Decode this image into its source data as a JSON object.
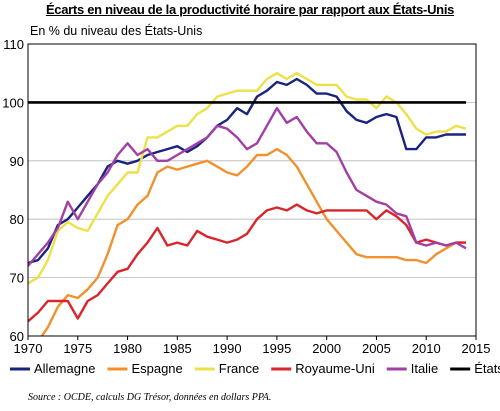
{
  "title": "Écarts en niveau de la productivité horaire par rapport aux États-Unis",
  "source": "Source : OCDE, calculs DG Trésor, données en dollars PPA.",
  "chart_data": {
    "type": "line",
    "ylabel": "En % du niveau des États-Unis",
    "xlabel": "",
    "xlim": [
      1970,
      2015
    ],
    "ylim": [
      60,
      110
    ],
    "xticks": [
      1970,
      1975,
      1980,
      1985,
      1990,
      1995,
      2000,
      2005,
      2010,
      2015
    ],
    "yticks": [
      60,
      70,
      80,
      90,
      100,
      110
    ],
    "x": [
      1970,
      1971,
      1972,
      1973,
      1974,
      1975,
      1976,
      1977,
      1978,
      1979,
      1980,
      1981,
      1982,
      1983,
      1984,
      1985,
      1986,
      1987,
      1988,
      1989,
      1990,
      1991,
      1992,
      1993,
      1994,
      1995,
      1996,
      1997,
      1998,
      1999,
      2000,
      2001,
      2002,
      2003,
      2004,
      2005,
      2006,
      2007,
      2008,
      2009,
      2010,
      2011,
      2012,
      2013,
      2014
    ],
    "legend_position": "bottom",
    "grid": "horizontal",
    "series": [
      {
        "name": "Allemagne",
        "color": "#1a237e",
        "values": [
          72.5,
          73,
          75,
          79,
          80,
          82,
          84,
          86,
          89,
          90,
          89.5,
          90,
          91,
          91.5,
          92,
          92.5,
          91.5,
          92.5,
          94,
          96,
          97,
          99,
          98,
          101,
          102,
          103.5,
          103,
          104,
          103,
          101.5,
          101.5,
          101,
          98.5,
          97,
          96.5,
          97.5,
          98,
          97.5,
          92,
          92,
          94,
          94,
          94.5,
          94.5,
          94.5
        ]
      },
      {
        "name": "Espagne",
        "color": "#f0912d",
        "values": [
          57,
          59,
          61.5,
          65,
          67,
          66.5,
          68,
          70,
          74,
          79,
          80,
          82.5,
          84,
          88,
          89,
          88.5,
          89,
          89.5,
          90,
          89,
          88,
          87.5,
          89,
          91,
          91,
          92,
          91,
          89,
          86,
          83,
          80,
          78,
          76,
          74,
          73.5,
          73.5,
          73.5,
          73.5,
          73,
          73,
          72.5,
          74,
          75,
          76,
          76
        ]
      },
      {
        "name": "France",
        "color": "#ede14a",
        "values": [
          69,
          70,
          73,
          78,
          79.5,
          78.5,
          78,
          81,
          84,
          86,
          88,
          88,
          94,
          94,
          95,
          96,
          96,
          98,
          99,
          101,
          101.5,
          102,
          102,
          102,
          104,
          105,
          104,
          105,
          104,
          103,
          103,
          103,
          101,
          100.5,
          100.5,
          99,
          101,
          100,
          98,
          95.5,
          94.5,
          95,
          95,
          96,
          95.5
        ]
      },
      {
        "name": "Royaume-Uni",
        "color": "#d8262c",
        "values": [
          62.5,
          64,
          66,
          66,
          66,
          63,
          66,
          67,
          69,
          71,
          71.5,
          74,
          76,
          78.5,
          75.5,
          76,
          75.5,
          78,
          77,
          76.5,
          76,
          76.5,
          77.5,
          80,
          81.5,
          82,
          81.5,
          82.5,
          81.5,
          81,
          81.5,
          81.5,
          81.5,
          81.5,
          81.5,
          80,
          81.5,
          80.5,
          79,
          76,
          76.5,
          76,
          75.5,
          76,
          76
        ]
      },
      {
        "name": "Italie",
        "color": "#a23fa6",
        "values": [
          72,
          74,
          76,
          78.5,
          83,
          80,
          83,
          86,
          88,
          91,
          93,
          91,
          92,
          90,
          90,
          91,
          92,
          93,
          94,
          96,
          95.5,
          94,
          92,
          93,
          96,
          99,
          96.5,
          97.5,
          95,
          93,
          93,
          91.5,
          88,
          85,
          84,
          83,
          82.5,
          81,
          80.5,
          76,
          75.5,
          76,
          75.5,
          76,
          75
        ]
      },
      {
        "name": "États-Unis",
        "color": "#000000",
        "values": [
          100,
          100,
          100,
          100,
          100,
          100,
          100,
          100,
          100,
          100,
          100,
          100,
          100,
          100,
          100,
          100,
          100,
          100,
          100,
          100,
          100,
          100,
          100,
          100,
          100,
          100,
          100,
          100,
          100,
          100,
          100,
          100,
          100,
          100,
          100,
          100,
          100,
          100,
          100,
          100,
          100,
          100,
          100,
          100,
          100
        ]
      }
    ]
  }
}
